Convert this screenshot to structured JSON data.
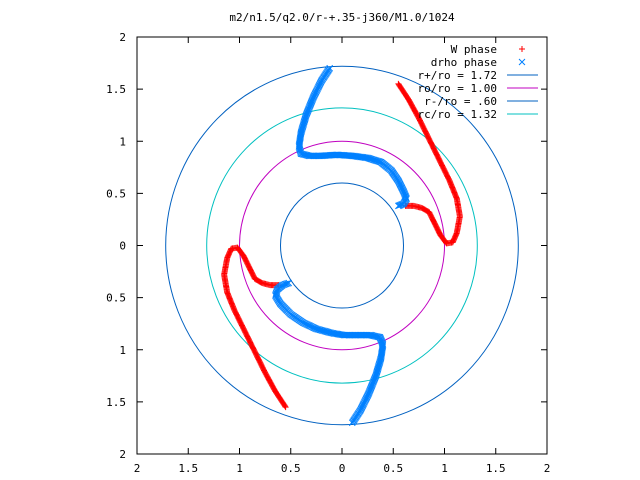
{
  "chart_data": {
    "type": "scatter",
    "title": "m2/n1.5/q2.0/r-+.35-j360/M1.0/1024",
    "xlabel": "",
    "ylabel": "",
    "xlim": [
      -2,
      2
    ],
    "ylim": [
      -2,
      2
    ],
    "x_ticks": [
      -2,
      -1.5,
      -1,
      -0.5,
      0,
      0.5,
      1,
      1.5,
      2
    ],
    "y_ticks": [
      -2,
      -1.5,
      -1,
      -0.5,
      0,
      0.5,
      1,
      1.5,
      2
    ],
    "x_tick_labels": [
      "2",
      "1.5",
      "1",
      "0.5",
      "0",
      "0.5",
      "1",
      "1.5",
      "2"
    ],
    "y_tick_labels": [
      "2",
      "1.5",
      "1",
      "0.5",
      "0",
      "0.5",
      "1",
      "1.5",
      "2"
    ],
    "grid": false,
    "legend_position": "top-right",
    "series": [
      {
        "name": "W phase",
        "marker": "+",
        "color": "#ff0000",
        "arms": [
          [
            [
              0.55,
              1.55
            ],
            [
              0.65,
              1.4
            ],
            [
              0.75,
              1.22
            ],
            [
              0.85,
              1.02
            ],
            [
              0.95,
              0.82
            ],
            [
              1.05,
              0.62
            ],
            [
              1.12,
              0.45
            ],
            [
              1.15,
              0.28
            ],
            [
              1.12,
              0.12
            ],
            [
              1.08,
              0.03
            ],
            [
              1.02,
              0.02
            ],
            [
              0.96,
              0.1
            ],
            [
              0.9,
              0.22
            ],
            [
              0.85,
              0.32
            ],
            [
              0.78,
              0.36
            ],
            [
              0.7,
              0.38
            ],
            [
              0.62,
              0.38
            ]
          ],
          [
            [
              -0.55,
              -1.55
            ],
            [
              -0.65,
              -1.4
            ],
            [
              -0.75,
              -1.22
            ],
            [
              -0.85,
              -1.02
            ],
            [
              -0.95,
              -0.82
            ],
            [
              -1.05,
              -0.62
            ],
            [
              -1.12,
              -0.45
            ],
            [
              -1.15,
              -0.28
            ],
            [
              -1.12,
              -0.12
            ],
            [
              -1.08,
              -0.03
            ],
            [
              -1.02,
              -0.02
            ],
            [
              -0.96,
              -0.1
            ],
            [
              -0.9,
              -0.22
            ],
            [
              -0.85,
              -0.32
            ],
            [
              -0.78,
              -0.36
            ],
            [
              -0.7,
              -0.38
            ],
            [
              -0.62,
              -0.38
            ]
          ]
        ]
      },
      {
        "name": "drho phase",
        "marker": "x",
        "color": "#0080ff",
        "arms": [
          [
            [
              -0.12,
              1.7
            ],
            [
              -0.2,
              1.58
            ],
            [
              -0.28,
              1.42
            ],
            [
              -0.35,
              1.25
            ],
            [
              -0.4,
              1.08
            ],
            [
              -0.42,
              0.95
            ],
            [
              -0.4,
              0.88
            ],
            [
              -0.32,
              0.86
            ],
            [
              -0.2,
              0.86
            ],
            [
              -0.05,
              0.87
            ],
            [
              0.1,
              0.86
            ],
            [
              0.25,
              0.84
            ],
            [
              0.38,
              0.8
            ],
            [
              0.48,
              0.72
            ],
            [
              0.55,
              0.62
            ],
            [
              0.6,
              0.52
            ],
            [
              0.63,
              0.45
            ],
            [
              0.6,
              0.4
            ],
            [
              0.55,
              0.38
            ]
          ],
          [
            [
              0.1,
              -1.7
            ],
            [
              0.18,
              -1.58
            ],
            [
              0.26,
              -1.42
            ],
            [
              0.33,
              -1.25
            ],
            [
              0.38,
              -1.08
            ],
            [
              0.4,
              -0.95
            ],
            [
              0.37,
              -0.88
            ],
            [
              0.28,
              -0.86
            ],
            [
              0.15,
              -0.86
            ],
            [
              0.02,
              -0.86
            ],
            [
              -0.1,
              -0.84
            ],
            [
              -0.25,
              -0.8
            ],
            [
              -0.38,
              -0.74
            ],
            [
              -0.5,
              -0.66
            ],
            [
              -0.6,
              -0.56
            ],
            [
              -0.65,
              -0.48
            ],
            [
              -0.63,
              -0.42
            ],
            [
              -0.58,
              -0.38
            ],
            [
              -0.52,
              -0.36
            ]
          ]
        ]
      }
    ],
    "circles": [
      {
        "name": "r+/ro = 1.72",
        "radius": 1.72,
        "color": "#0060c0"
      },
      {
        "name": "ro/ro = 1.00",
        "radius": 1.0,
        "color": "#c000c0"
      },
      {
        "name": "r-/ro = .60",
        "radius": 0.6,
        "color": "#0060c0"
      },
      {
        "name": "rc/ro = 1.32",
        "radius": 1.32,
        "color": "#00c0c0"
      }
    ]
  }
}
